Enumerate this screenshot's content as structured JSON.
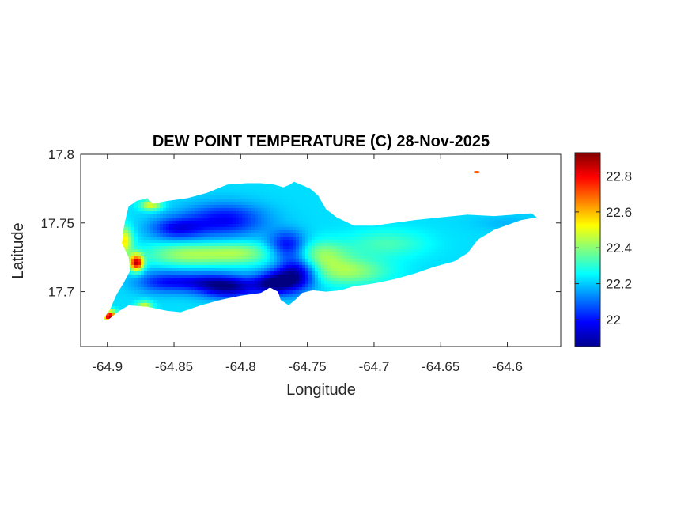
{
  "chart_data": {
    "type": "heatmap",
    "title": "DEW POINT TEMPERATURE (C) 28-Nov-2025",
    "xlabel": "Longitude",
    "ylabel": "Latitude",
    "xlim": [
      -64.92,
      -64.56
    ],
    "ylim": [
      17.66,
      17.8
    ],
    "x_ticks": [
      -64.9,
      -64.85,
      -64.8,
      -64.75,
      -64.7,
      -64.65,
      -64.6
    ],
    "x_tick_labels": [
      "-64.9",
      "-64.85",
      "-64.8",
      "-64.75",
      "-64.7",
      "-64.65",
      "-64.6"
    ],
    "y_ticks": [
      17.7,
      17.75,
      17.8
    ],
    "y_tick_labels": [
      "17.7",
      "17.75",
      "17.8"
    ],
    "colormap": "jet",
    "colorbar": {
      "min": 21.85,
      "max": 22.93,
      "ticks": [
        22,
        22.2,
        22.4,
        22.6,
        22.8
      ],
      "tick_labels": [
        "22",
        "22.2",
        "22.4",
        "22.6",
        "22.8"
      ]
    },
    "grid": false,
    "island_outline": [
      [
        -64.9,
        17.679
      ],
      [
        -64.891,
        17.686
      ],
      [
        -64.884,
        17.69
      ],
      [
        -64.87,
        17.689
      ],
      [
        -64.855,
        17.686
      ],
      [
        -64.845,
        17.685
      ],
      [
        -64.83,
        17.69
      ],
      [
        -64.815,
        17.694
      ],
      [
        -64.8,
        17.697
      ],
      [
        -64.785,
        17.699
      ],
      [
        -64.778,
        17.703
      ],
      [
        -64.772,
        17.7
      ],
      [
        -64.77,
        17.694
      ],
      [
        -64.764,
        17.69
      ],
      [
        -64.758,
        17.695
      ],
      [
        -64.754,
        17.699
      ],
      [
        -64.746,
        17.701
      ],
      [
        -64.736,
        17.7
      ],
      [
        -64.725,
        17.701
      ],
      [
        -64.715,
        17.704
      ],
      [
        -64.7,
        17.706
      ],
      [
        -64.685,
        17.709
      ],
      [
        -64.67,
        17.713
      ],
      [
        -64.655,
        17.718
      ],
      [
        -64.64,
        17.722
      ],
      [
        -64.63,
        17.728
      ],
      [
        -64.622,
        17.738
      ],
      [
        -64.61,
        17.745
      ],
      [
        -64.59,
        17.752
      ],
      [
        -64.578,
        17.754
      ],
      [
        -64.582,
        17.757
      ],
      [
        -64.595,
        17.756
      ],
      [
        -64.61,
        17.755
      ],
      [
        -64.63,
        17.756
      ],
      [
        -64.65,
        17.754
      ],
      [
        -64.67,
        17.752
      ],
      [
        -64.685,
        17.75
      ],
      [
        -64.7,
        17.748
      ],
      [
        -64.715,
        17.748
      ],
      [
        -64.728,
        17.754
      ],
      [
        -64.736,
        17.76
      ],
      [
        -64.742,
        17.77
      ],
      [
        -64.748,
        17.775
      ],
      [
        -64.755,
        17.778
      ],
      [
        -64.76,
        17.78
      ],
      [
        -64.763,
        17.778
      ],
      [
        -64.768,
        17.776
      ],
      [
        -64.775,
        17.778
      ],
      [
        -64.785,
        17.779
      ],
      [
        -64.795,
        17.779
      ],
      [
        -64.81,
        17.778
      ],
      [
        -64.825,
        17.772
      ],
      [
        -64.84,
        17.768
      ],
      [
        -64.855,
        17.766
      ],
      [
        -64.866,
        17.764
      ],
      [
        -64.87,
        17.768
      ],
      [
        -64.878,
        17.766
      ],
      [
        -64.884,
        17.762
      ],
      [
        -64.886,
        17.754
      ],
      [
        -64.888,
        17.745
      ],
      [
        -64.889,
        17.735
      ],
      [
        -64.884,
        17.725
      ],
      [
        -64.883,
        17.715
      ],
      [
        -64.888,
        17.706
      ],
      [
        -64.893,
        17.698
      ],
      [
        -64.898,
        17.687
      ],
      [
        -64.903,
        17.68
      ]
    ],
    "anomalies": [
      {
        "lon": -64.812,
        "lat": 17.752,
        "value": 21.98,
        "spread_lon": 0.03,
        "spread_lat": 0.012
      },
      {
        "lon": -64.848,
        "lat": 17.746,
        "value": 22.0,
        "spread_lon": 0.02,
        "spread_lat": 0.008
      },
      {
        "lon": -64.808,
        "lat": 17.703,
        "value": 21.92,
        "spread_lon": 0.022,
        "spread_lat": 0.008
      },
      {
        "lon": -64.775,
        "lat": 17.706,
        "value": 21.88,
        "spread_lon": 0.015,
        "spread_lat": 0.008
      },
      {
        "lon": -64.758,
        "lat": 17.713,
        "value": 21.87,
        "spread_lon": 0.015,
        "spread_lat": 0.012
      },
      {
        "lon": -64.765,
        "lat": 17.734,
        "value": 21.98,
        "spread_lon": 0.014,
        "spread_lat": 0.01
      },
      {
        "lon": -64.83,
        "lat": 17.707,
        "value": 22.02,
        "spread_lon": 0.025,
        "spread_lat": 0.007
      },
      {
        "lon": -64.86,
        "lat": 17.707,
        "value": 22.05,
        "spread_lon": 0.02,
        "spread_lat": 0.008
      },
      {
        "lon": -64.878,
        "lat": 17.721,
        "value": 22.85,
        "spread_lon": 0.005,
        "spread_lat": 0.006
      },
      {
        "lon": -64.887,
        "lat": 17.737,
        "value": 22.55,
        "spread_lon": 0.006,
        "spread_lat": 0.01
      },
      {
        "lon": -64.867,
        "lat": 17.763,
        "value": 22.5,
        "spread_lon": 0.008,
        "spread_lat": 0.004
      },
      {
        "lon": -64.898,
        "lat": 17.682,
        "value": 22.9,
        "spread_lon": 0.005,
        "spread_lat": 0.004
      },
      {
        "lon": -64.872,
        "lat": 17.689,
        "value": 22.5,
        "spread_lon": 0.006,
        "spread_lat": 0.004
      },
      {
        "lon": -64.84,
        "lat": 17.727,
        "value": 22.42,
        "spread_lon": 0.03,
        "spread_lat": 0.008
      },
      {
        "lon": -64.8,
        "lat": 17.728,
        "value": 22.4,
        "spread_lon": 0.025,
        "spread_lat": 0.008
      },
      {
        "lon": -64.74,
        "lat": 17.727,
        "value": 22.4,
        "spread_lon": 0.02,
        "spread_lat": 0.01
      },
      {
        "lon": -64.72,
        "lat": 17.715,
        "value": 22.42,
        "spread_lon": 0.03,
        "spread_lat": 0.01
      },
      {
        "lon": -64.69,
        "lat": 17.735,
        "value": 22.33,
        "spread_lon": 0.03,
        "spread_lat": 0.01
      },
      {
        "lon": -64.6,
        "lat": 17.75,
        "value": 22.18,
        "spread_lon": 0.025,
        "spread_lat": 0.006
      }
    ],
    "isolated_points": [
      {
        "lon": -64.623,
        "lat": 17.787,
        "value": 22.7
      }
    ]
  }
}
